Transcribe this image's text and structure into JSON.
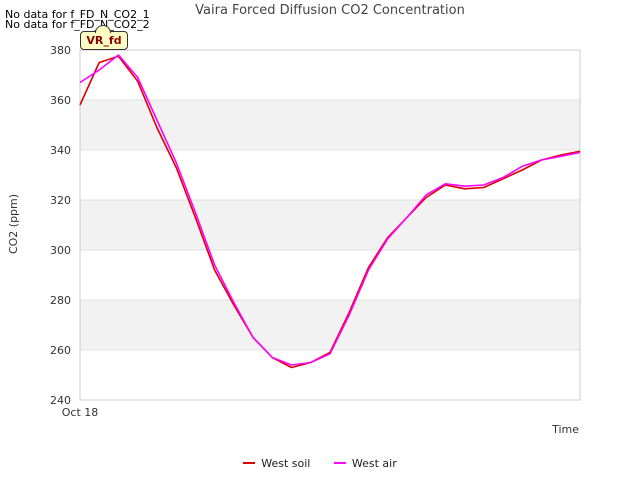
{
  "notices": [
    "No data for f_FD_N_CO2_1",
    "No data for f_FD_N_CO2_2"
  ],
  "badge": {
    "label": "VR_fd"
  },
  "chart_data": {
    "type": "line",
    "title": "Vaira Forced Diffusion CO2 Concentration",
    "xlabel": "Time",
    "ylabel": "CO2 (ppm)",
    "ylim": [
      240,
      380
    ],
    "yticks": [
      240,
      260,
      280,
      300,
      320,
      340,
      360,
      380
    ],
    "xlim": [
      0,
      26
    ],
    "xtick_labels": [
      {
        "x": 0,
        "label": "Oct 18"
      }
    ],
    "legend_position": "bottom-center",
    "series": [
      {
        "name": "West soil",
        "color": "#dd0000",
        "x": [
          0,
          1,
          2,
          3,
          4,
          5,
          6,
          7,
          8,
          9,
          10,
          11,
          12,
          13,
          14,
          15,
          16,
          17,
          18,
          19,
          20,
          21,
          22,
          23,
          24,
          25,
          26
        ],
        "values": [
          358,
          375,
          377.5,
          367.5,
          349,
          333,
          313,
          292,
          278,
          265,
          257,
          253,
          255,
          259,
          275,
          293,
          305,
          313,
          321,
          326,
          324.5,
          325,
          328.5,
          332,
          336,
          338,
          339.5
        ]
      },
      {
        "name": "West air",
        "color": "#ff00ff",
        "x": [
          0,
          1,
          2,
          3,
          4,
          5,
          6,
          7,
          8,
          9,
          10,
          11,
          12,
          13,
          14,
          15,
          16,
          17,
          18,
          19,
          20,
          21,
          22,
          23,
          24,
          25,
          26
        ],
        "values": [
          367,
          372,
          378,
          369,
          352,
          335,
          315,
          294,
          279,
          265,
          257,
          254,
          255,
          258.5,
          274,
          292,
          304.5,
          313,
          322,
          326.5,
          325.5,
          326,
          329,
          333.5,
          336,
          337.5,
          339
        ]
      }
    ]
  }
}
